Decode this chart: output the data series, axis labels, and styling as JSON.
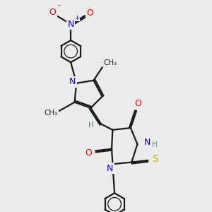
{
  "bg_color": "#ebebeb",
  "bond_color": "#1a1a1a",
  "atom_colors": {
    "N": "#0000ee",
    "O": "#ee0000",
    "S": "#bbbb00",
    "H": "#558888"
  },
  "figsize": [
    3.0,
    3.0
  ],
  "dpi": 100
}
